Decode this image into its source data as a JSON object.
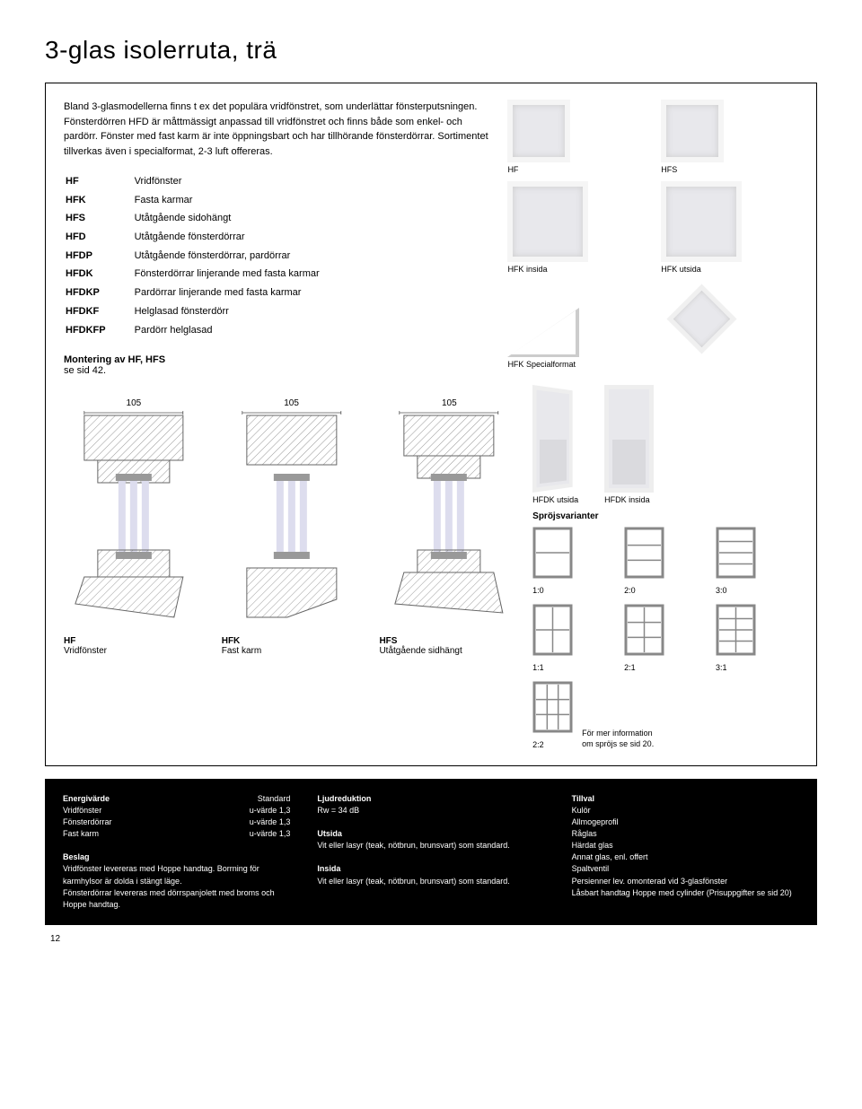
{
  "title": "3-glas isolerruta, trä",
  "intro": "Bland 3-glasmodellerna finns t ex det populära vridfönstret, som underlättar fönsterputsningen. Fönsterdörren HFD är måttmässigt anpassad till vridfönstret och finns både som enkel- och pardörr. Fönster med fast karm är inte öppningsbart och har tillhörande fönsterdörrar. Sortimentet tillverkas även i specialformat, 2-3 luft offereras.",
  "codes": [
    {
      "code": "HF",
      "desc": "Vridfönster"
    },
    {
      "code": "HFK",
      "desc": "Fasta karmar"
    },
    {
      "code": "HFS",
      "desc": "Utåtgående sidohängt"
    },
    {
      "code": "HFD",
      "desc": "Utåtgående fönsterdörrar"
    },
    {
      "code": "HFDP",
      "desc": "Utåtgående fönsterdörrar, pardörrar"
    },
    {
      "code": "HFDK",
      "desc": "Fönsterdörrar linjerande med fasta karmar"
    },
    {
      "code": "HFDKP",
      "desc": "Pardörrar linjerande med fasta karmar"
    },
    {
      "code": "HFDKF",
      "desc": "Helglasad fönsterdörr"
    },
    {
      "code": "HFDKFP",
      "desc": "Pardörr helglasad"
    }
  ],
  "mounting_title": "Montering av HF, HFS",
  "mounting_sub": "se sid 42.",
  "thumbs_top": [
    {
      "label": "HF"
    },
    {
      "label": "HFS"
    },
    {
      "label": "HFK insida"
    },
    {
      "label": "HFK utsida"
    },
    {
      "label": "HFK Specialformat"
    },
    {
      "label": ""
    }
  ],
  "doors": [
    {
      "label": "HFDK utsida"
    },
    {
      "label": "HFDK insida"
    }
  ],
  "sproj_title": "Spröjsvarianter",
  "sproj": [
    {
      "v": 1,
      "h": 0,
      "label": "1:0"
    },
    {
      "v": 2,
      "h": 0,
      "label": "2:0"
    },
    {
      "v": 3,
      "h": 0,
      "label": "3:0"
    },
    {
      "v": 1,
      "h": 1,
      "label": "1:1"
    },
    {
      "v": 2,
      "h": 1,
      "label": "2:1"
    },
    {
      "v": 3,
      "h": 1,
      "label": "3:1"
    },
    {
      "v": 2,
      "h": 2,
      "label": "2:2"
    }
  ],
  "sproj_info1": "För mer information",
  "sproj_info2": "om spröjs se sid 20.",
  "cross": [
    {
      "dim": "105",
      "code": "HF",
      "desc": "Vridfönster"
    },
    {
      "dim": "105",
      "code": "HFK",
      "desc": "Fast karm"
    },
    {
      "dim": "105",
      "code": "HFS",
      "desc": "Utåtgående sidhängt"
    }
  ],
  "footer": {
    "col1": {
      "h1": "Energivärde",
      "h1r": "Standard",
      "r1l": "Vridfönster",
      "r1r": "u-värde 1,3",
      "r2l": "Fönsterdörrar",
      "r2r": "u-värde 1,3",
      "r3l": "Fast karm",
      "r3r": "u-värde 1,3",
      "h2": "Beslag",
      "p1": "Vridfönster levereras med Hoppe handtag. Borrning för karmhylsor är dolda i stängt läge.",
      "p2": "Fönsterdörrar levereras med dörrspanjolett med broms och Hoppe handtag."
    },
    "col2": {
      "h1": "Ljudreduktion",
      "l1": "Rw = 34 dB",
      "h2": "Utsida",
      "p2": "Vit eller lasyr (teak, nötbrun, brunsvart) som standard.",
      "h3": "Insida",
      "p3": "Vit eller lasyr (teak, nötbrun, brunsvart) som standard."
    },
    "col3": {
      "h1": "Tillval",
      "items": [
        "Kulör",
        "Allmogeprofil",
        "Råglas",
        "Härdat glas",
        "Annat glas, enl. offert",
        "Spaltventil",
        "Persienner lev. omonterad vid 3-glasfönster",
        "Låsbart handtag Hoppe med cylinder (Prisuppgifter se sid 20)"
      ]
    }
  },
  "page_number": "12",
  "colors": {
    "hatch": "#bbb",
    "frame": "#888",
    "glass": "#e8e8ec"
  }
}
